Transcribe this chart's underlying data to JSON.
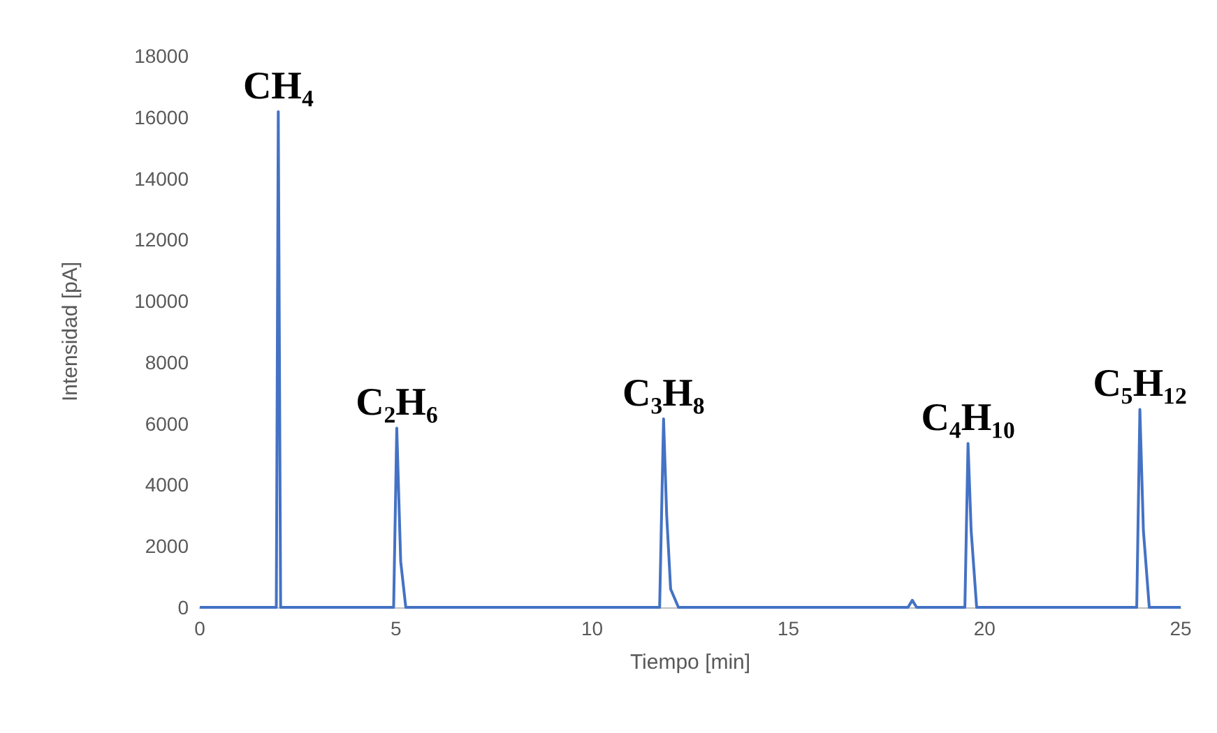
{
  "chart_data": {
    "type": "line",
    "xlabel": "Tiempo [min]",
    "ylabel": "Intensidad [pA]",
    "xlim": [
      0,
      25
    ],
    "xticks": [
      0,
      5,
      10,
      15,
      20,
      25
    ],
    "ylim": [
      0,
      18000
    ],
    "yticks": [
      0,
      2000,
      4000,
      6000,
      8000,
      10000,
      12000,
      14000,
      16000,
      18000
    ],
    "grid": false,
    "marker": "none",
    "line_style": "solid",
    "series": [
      {
        "color": "#4472c4",
        "x": [
          0,
          1.95,
          2.0,
          2.06,
          4.94,
          5.02,
          5.12,
          5.25,
          11.72,
          11.82,
          11.9,
          12.0,
          12.2,
          18.05,
          18.16,
          18.27,
          19.5,
          19.58,
          19.66,
          19.8,
          23.88,
          23.96,
          24.05,
          24.2,
          25
        ],
        "values": [
          0,
          0,
          16180,
          0,
          0,
          5850,
          1500,
          0,
          0,
          6150,
          3000,
          600,
          0,
          0,
          230,
          0,
          0,
          5350,
          2500,
          0,
          0,
          6460,
          2500,
          0,
          0
        ]
      }
    ],
    "annotations": [
      {
        "text": "CH₄",
        "x": 2.0,
        "y": 16180
      },
      {
        "text": "C₂H₆",
        "x": 5.02,
        "y": 5850
      },
      {
        "text": "C₃H₈",
        "x": 11.82,
        "y": 6150
      },
      {
        "text": "C₄H₁₀",
        "x": 19.58,
        "y": 5350
      },
      {
        "text": "C₅H₁₂",
        "x": 23.96,
        "y": 6460
      }
    ]
  }
}
